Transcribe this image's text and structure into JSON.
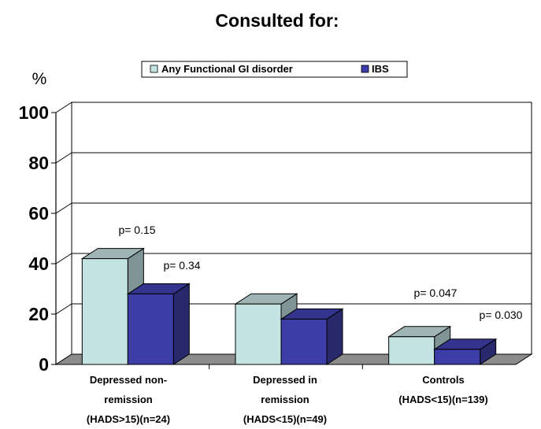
{
  "chart_data": {
    "type": "bar",
    "title": "Consulted for:",
    "ylabel": "%",
    "ylim": [
      0,
      100
    ],
    "yticks": [
      0,
      20,
      40,
      60,
      80,
      100
    ],
    "grid": true,
    "legend_position": "top",
    "categories": [
      [
        "Depressed non-",
        "remission",
        "(HADS>15)(n=24)"
      ],
      [
        "Depressed in",
        "remission",
        "(HADS<15)(n=49)"
      ],
      [
        "Controls",
        "(HADS<15)(n=139)"
      ]
    ],
    "series": [
      {
        "name": "Any Functional GI disorder",
        "values": [
          42,
          24,
          11
        ],
        "color": "#c4e4e4"
      },
      {
        "name": "IBS",
        "values": [
          28,
          18,
          6
        ],
        "color": "#3d3da8"
      }
    ],
    "annotations": [
      {
        "text": "p= 0.15",
        "category": 0
      },
      {
        "text": "p= 0.34",
        "category": 0
      },
      {
        "text": "p= 0.047",
        "category": 2
      },
      {
        "text": "p= 0.030",
        "category": 2
      }
    ]
  }
}
